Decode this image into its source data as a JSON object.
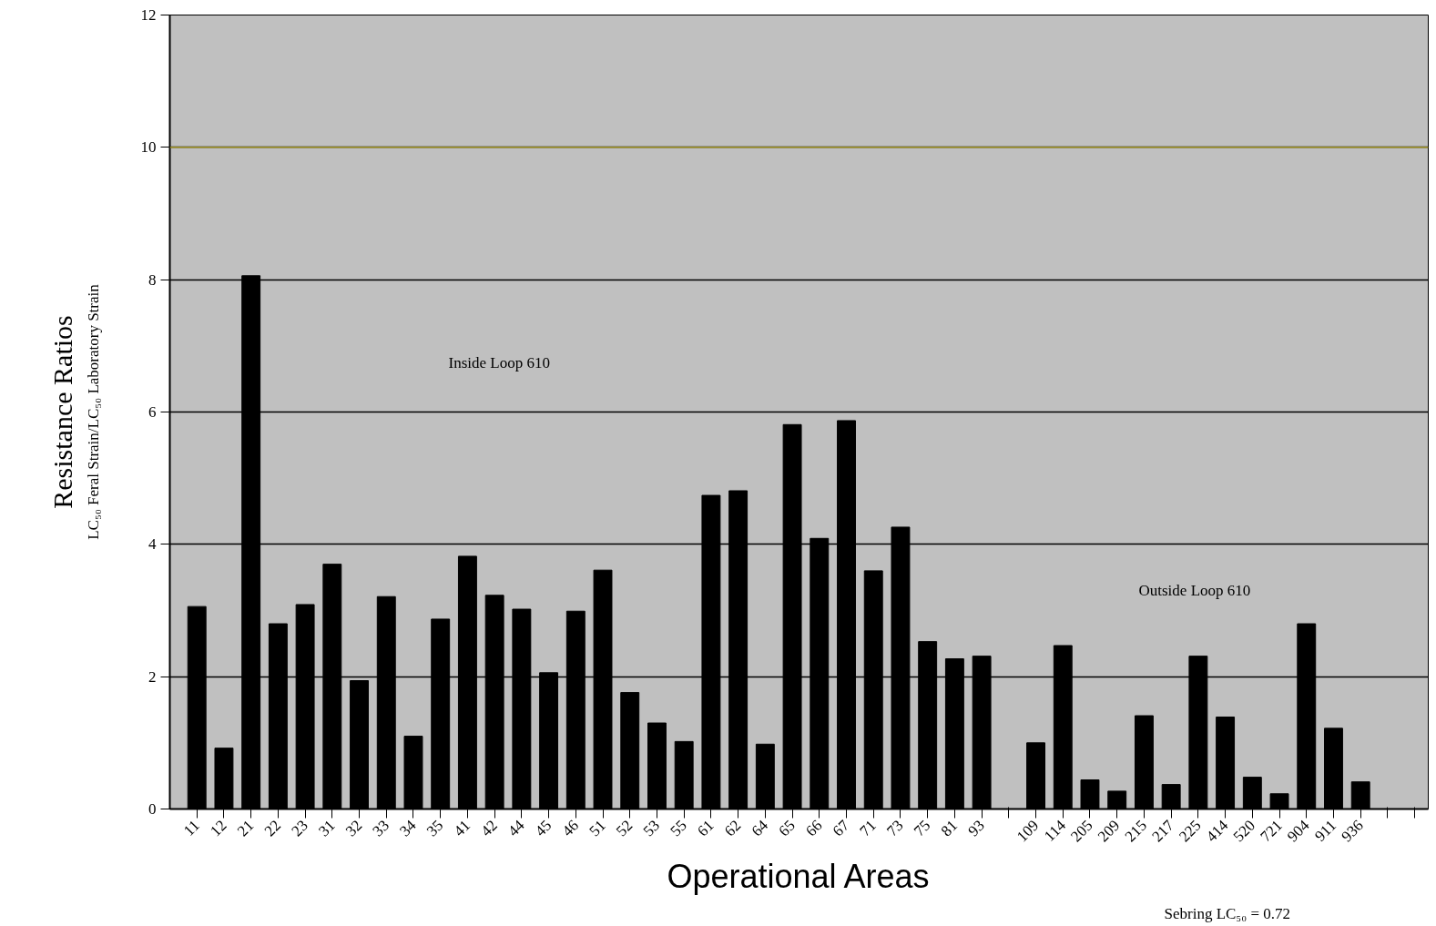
{
  "chart_data": {
    "type": "bar",
    "xlabel": "Operational Areas",
    "ylabel": "Resistance Ratios",
    "annotations": [
      "LC₅₀ Feral Strain/LC₅₀ Laboratory Strain",
      "Inside Loop 610",
      "Outside Loop 610",
      "Sebring LC₅₀ = 0.72"
    ],
    "categories": [
      "11",
      "12",
      "21",
      "22",
      "23",
      "31",
      "32",
      "33",
      "34",
      "35",
      "41",
      "42",
      "44",
      "45",
      "46",
      "51",
      "52",
      "53",
      "55",
      "61",
      "62",
      "64",
      "65",
      "66",
      "67",
      "71",
      "73",
      "75",
      "81",
      "93",
      null,
      "109",
      "114",
      "205",
      "209",
      "215",
      "217",
      "225",
      "414",
      "520",
      "721",
      "904",
      "911",
      "936",
      null,
      null
    ],
    "values": [
      3.06,
      0.92,
      8.06,
      2.8,
      3.09,
      3.7,
      1.94,
      3.21,
      1.1,
      2.87,
      3.82,
      3.23,
      3.02,
      2.06,
      2.99,
      3.61,
      1.76,
      1.3,
      1.02,
      4.74,
      4.81,
      0.98,
      5.81,
      4.09,
      5.87,
      3.6,
      4.26,
      2.53,
      2.27,
      2.31,
      null,
      1.0,
      2.47,
      0.44,
      0.27,
      1.41,
      0.37,
      2.31,
      1.39,
      0.48,
      0.23,
      2.8,
      1.22,
      0.41,
      null,
      null
    ],
    "color": "#000000",
    "ylim": [
      0,
      12
    ],
    "yticks": [
      0,
      2,
      4,
      6,
      8,
      10,
      12
    ],
    "grid": "y",
    "ref_lines": [
      {
        "axis": "y",
        "value": 10,
        "color": "#9c8f1e"
      }
    ]
  }
}
